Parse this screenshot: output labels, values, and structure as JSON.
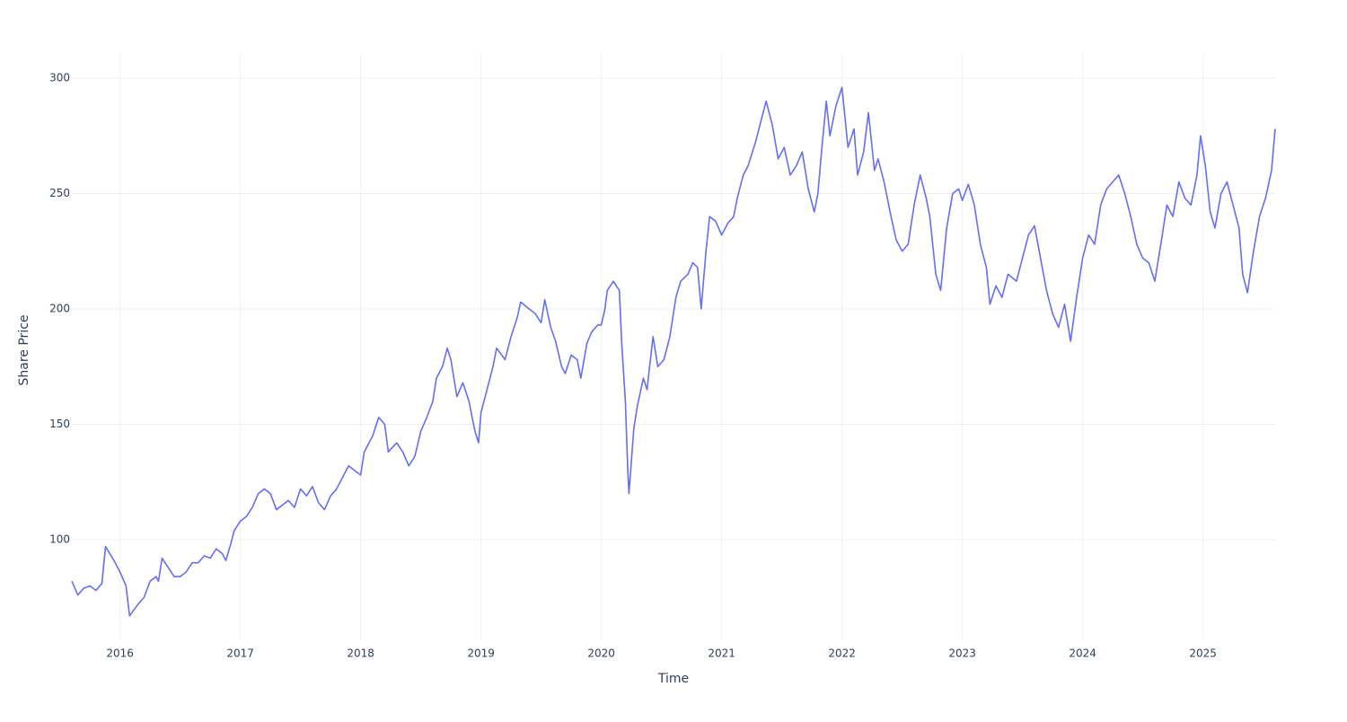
{
  "chart_data": {
    "type": "line",
    "x_label": "Time",
    "y_label": "Share Price",
    "color": "#636efa",
    "grid": true,
    "xlim": [
      2015.6,
      2025.6
    ],
    "xticks": [
      2016,
      2017,
      2018,
      2019,
      2020,
      2021,
      2022,
      2023,
      2024,
      2025
    ],
    "ylim": [
      56.8,
      310.5
    ],
    "yticks": [
      100,
      150,
      200,
      250,
      300
    ],
    "x": [
      2015.6,
      2015.65,
      2015.7,
      2015.75,
      2015.8,
      2015.85,
      2015.88,
      2015.95,
      2016.0,
      2016.05,
      2016.08,
      2016.15,
      2016.2,
      2016.25,
      2016.3,
      2016.32,
      2016.35,
      2016.4,
      2016.45,
      2016.5,
      2016.55,
      2016.6,
      2016.65,
      2016.7,
      2016.75,
      2016.8,
      2016.85,
      2016.88,
      2016.92,
      2016.95,
      2017.0,
      2017.05,
      2017.1,
      2017.15,
      2017.2,
      2017.25,
      2017.3,
      2017.35,
      2017.4,
      2017.45,
      2017.5,
      2017.55,
      2017.6,
      2017.65,
      2017.7,
      2017.75,
      2017.8,
      2017.85,
      2017.9,
      2017.95,
      2018.0,
      2018.03,
      2018.1,
      2018.15,
      2018.2,
      2018.23,
      2018.3,
      2018.35,
      2018.4,
      2018.45,
      2018.5,
      2018.55,
      2018.6,
      2018.63,
      2018.68,
      2018.72,
      2018.75,
      2018.8,
      2018.85,
      2018.9,
      2018.95,
      2018.98,
      2019.0,
      2019.05,
      2019.1,
      2019.13,
      2019.2,
      2019.25,
      2019.3,
      2019.33,
      2019.4,
      2019.45,
      2019.5,
      2019.53,
      2019.58,
      2019.62,
      2019.67,
      2019.7,
      2019.75,
      2019.8,
      2019.83,
      2019.88,
      2019.92,
      2019.97,
      2020.0,
      2020.03,
      2020.05,
      2020.1,
      2020.15,
      2020.17,
      2020.2,
      2020.22,
      2020.23,
      2020.27,
      2020.3,
      2020.35,
      2020.38,
      2020.43,
      2020.47,
      2020.52,
      2020.57,
      2020.62,
      2020.66,
      2020.72,
      2020.76,
      2020.8,
      2020.83,
      2020.87,
      2020.9,
      2020.95,
      2021.0,
      2021.05,
      2021.1,
      2021.13,
      2021.18,
      2021.22,
      2021.28,
      2021.32,
      2021.37,
      2021.42,
      2021.47,
      2021.52,
      2021.57,
      2021.62,
      2021.67,
      2021.72,
      2021.77,
      2021.8,
      2021.83,
      2021.87,
      2021.9,
      2021.95,
      2022.0,
      2022.05,
      2022.1,
      2022.13,
      2022.18,
      2022.22,
      2022.27,
      2022.3,
      2022.35,
      2022.4,
      2022.45,
      2022.5,
      2022.55,
      2022.6,
      2022.65,
      2022.7,
      2022.73,
      2022.78,
      2022.82,
      2022.87,
      2022.92,
      2022.97,
      2023.0,
      2023.05,
      2023.1,
      2023.15,
      2023.2,
      2023.23,
      2023.28,
      2023.33,
      2023.38,
      2023.45,
      2023.5,
      2023.55,
      2023.6,
      2023.65,
      2023.7,
      2023.75,
      2023.8,
      2023.85,
      2023.9,
      2023.95,
      2024.0,
      2024.05,
      2024.1,
      2024.15,
      2024.2,
      2024.25,
      2024.3,
      2024.35,
      2024.4,
      2024.45,
      2024.5,
      2024.55,
      2024.6,
      2024.65,
      2024.7,
      2024.75,
      2024.8,
      2024.85,
      2024.9,
      2024.95,
      2024.98,
      2025.02,
      2025.06,
      2025.1,
      2025.15,
      2025.2,
      2025.25,
      2025.3,
      2025.33,
      2025.37,
      2025.42,
      2025.47,
      2025.52,
      2025.57,
      2025.6
    ],
    "values": [
      82,
      76,
      79,
      80,
      78,
      81,
      97,
      91,
      86,
      80,
      67,
      72,
      75,
      82,
      84,
      82,
      92,
      88,
      84,
      84,
      86,
      90,
      90,
      93,
      92,
      96,
      94,
      91,
      98,
      104,
      108,
      110,
      114,
      120,
      122,
      120,
      113,
      115,
      117,
      114,
      122,
      119,
      123,
      116,
      113,
      119,
      122,
      127,
      132,
      130,
      128,
      138,
      145,
      153,
      150,
      138,
      142,
      138,
      132,
      136,
      147,
      153,
      160,
      170,
      175,
      183,
      178,
      162,
      168,
      160,
      147,
      142,
      155,
      165,
      175,
      183,
      178,
      188,
      196,
      203,
      200,
      198,
      194,
      204,
      192,
      186,
      175,
      172,
      180,
      178,
      170,
      185,
      190,
      193,
      193,
      200,
      208,
      212,
      208,
      185,
      160,
      130,
      120,
      148,
      158,
      170,
      165,
      188,
      175,
      178,
      188,
      205,
      212,
      215,
      220,
      218,
      200,
      225,
      240,
      238,
      232,
      237,
      240,
      248,
      258,
      262,
      272,
      280,
      290,
      280,
      265,
      270,
      258,
      262,
      268,
      252,
      242,
      250,
      268,
      290,
      275,
      288,
      296,
      270,
      278,
      258,
      268,
      285,
      260,
      265,
      255,
      242,
      230,
      225,
      228,
      245,
      258,
      248,
      240,
      215,
      208,
      235,
      250,
      252,
      247,
      254,
      245,
      228,
      218,
      202,
      210,
      205,
      215,
      212,
      222,
      232,
      236,
      222,
      208,
      198,
      192,
      202,
      186,
      205,
      222,
      232,
      228,
      245,
      252,
      255,
      258,
      250,
      240,
      228,
      222,
      220,
      212,
      228,
      245,
      240,
      255,
      248,
      245,
      258,
      275,
      262,
      242,
      235,
      250,
      255,
      245,
      235,
      215,
      207,
      225,
      240,
      248,
      260,
      278
    ]
  }
}
